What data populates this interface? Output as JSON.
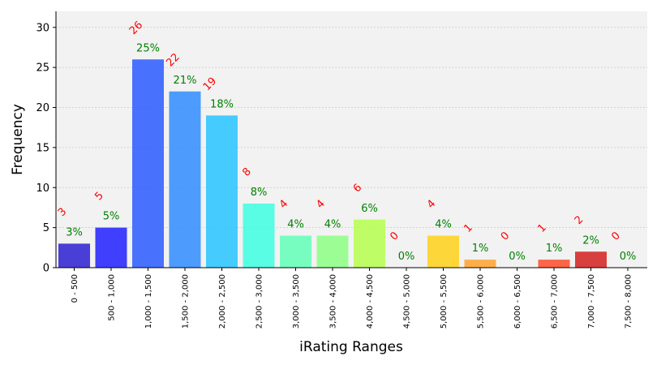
{
  "chart_data": {
    "type": "bar",
    "xlabel": "iRating Ranges",
    "ylabel": "Frequency",
    "ylim": [
      0,
      32
    ],
    "yticks": [
      0,
      5,
      10,
      15,
      20,
      25,
      30
    ],
    "grid": true,
    "categories": [
      "0 - 500",
      "500 - 1,000",
      "1,000 - 1,500",
      "1,500 - 2,000",
      "2,000 - 2,500",
      "2,500 - 3,000",
      "3,000 - 3,500",
      "3,500 - 4,000",
      "4,000 - 4,500",
      "4,500 - 5,000",
      "5,000 - 5,500",
      "5,500 - 6,000",
      "6,000 - 6,500",
      "6,500 - 7,000",
      "7,000 - 7,500",
      "7,500 - 8,000"
    ],
    "values": [
      3,
      5,
      26,
      22,
      19,
      8,
      4,
      4,
      6,
      0,
      4,
      1,
      0,
      1,
      2,
      0
    ],
    "percent_labels": [
      "3%",
      "5%",
      "25%",
      "21%",
      "18%",
      "8%",
      "4%",
      "4%",
      "6%",
      "0%",
      "4%",
      "1%",
      "0%",
      "1%",
      "2%",
      "0%"
    ],
    "count_labels": [
      "3",
      "5",
      "26",
      "22",
      "19",
      "8",
      "4",
      "4",
      "6",
      "0",
      "4",
      "1",
      "0",
      "1",
      "2",
      "0"
    ],
    "colors": [
      "#2b1fd0",
      "#2020ff",
      "#2a5cff",
      "#2f8cff",
      "#27c4ff",
      "#3dffe0",
      "#63ffb8",
      "#8eff85",
      "#b5ff4e",
      "#dfff2a",
      "#ffd21a",
      "#ffa22e",
      "#ff7a30",
      "#ff4b2a",
      "#d42020",
      "#aa0000"
    ],
    "plot_background": "#f2f2f2",
    "count_label_color": "#ff0000",
    "percent_label_color": "#008000"
  }
}
